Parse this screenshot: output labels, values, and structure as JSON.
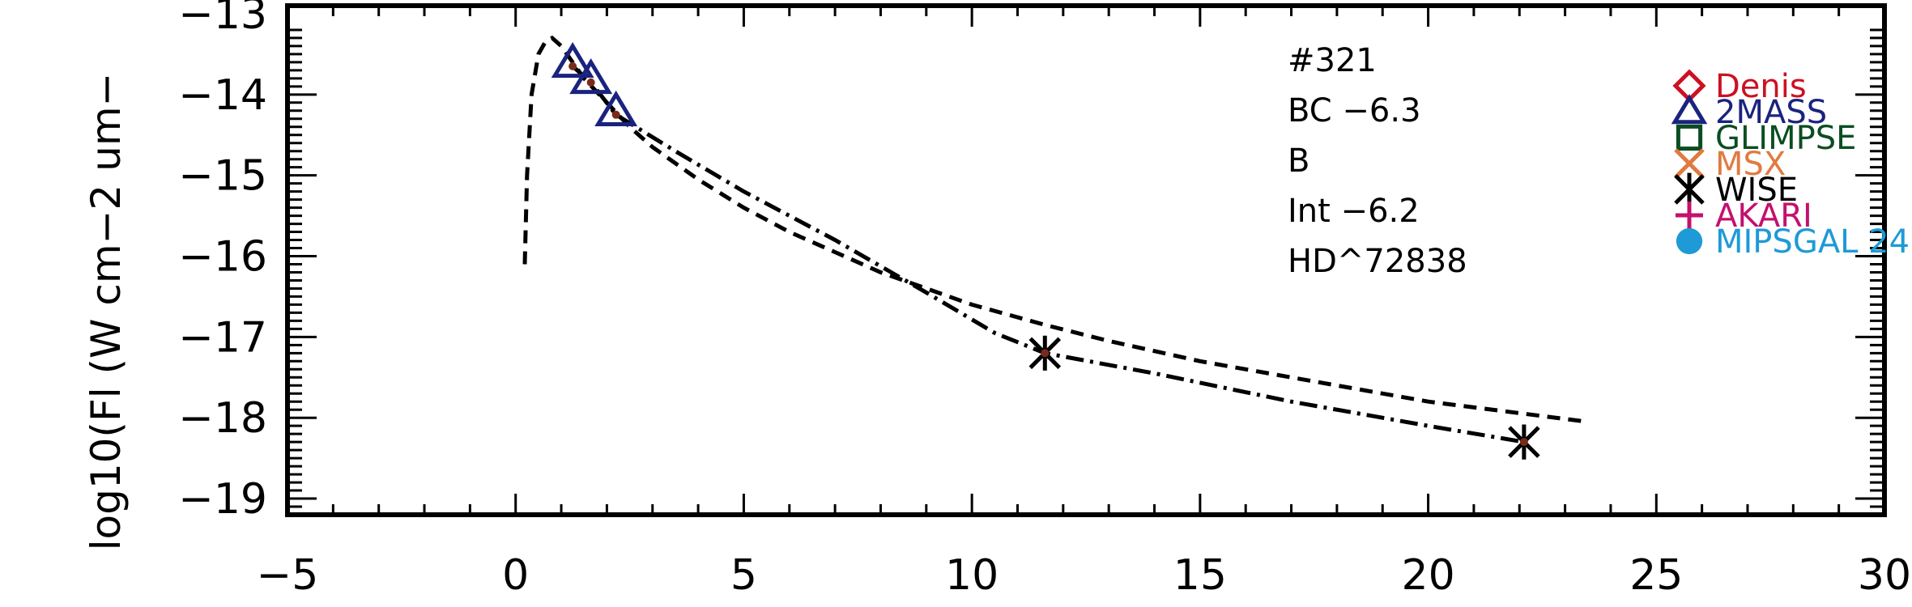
{
  "chart_data": {
    "type": "scatter",
    "title": "",
    "xlabel": "",
    "ylabel": "log10(Fl (W cm−2 um−",
    "xlim": [
      -5,
      30
    ],
    "ylim": [
      -19.2,
      -12.9
    ],
    "xticks": [
      -5,
      0,
      5,
      10,
      15,
      20,
      25,
      30
    ],
    "xtick_labels": [
      "−5",
      "0",
      "5",
      "10",
      "15",
      "20",
      "25",
      "30"
    ],
    "yticks": [
      -13,
      -14,
      -15,
      -16,
      -17,
      -18,
      -19
    ],
    "ytick_labels": [
      "−13",
      "−14",
      "−15",
      "−16",
      "−17",
      "−18",
      "−19"
    ],
    "grid": false,
    "legend_position": "top-right",
    "annotations": [
      "#321",
      "BC −6.3",
      "B",
      "Int −6.2",
      "HD^72838"
    ],
    "legend": [
      {
        "label": "Denis",
        "color": "#cc1122",
        "marker": "diamond"
      },
      {
        "label": "2MASS",
        "color": "#1a237e",
        "marker": "triangle"
      },
      {
        "label": "GLIMPSE",
        "color": "#0b4d22",
        "marker": "square"
      },
      {
        "label": "MSX",
        "color": "#e07a40",
        "marker": "x"
      },
      {
        "label": "WISE",
        "color": "#000000",
        "marker": "asterisk"
      },
      {
        "label": "AKARI",
        "color": "#c4106e",
        "marker": "plus"
      },
      {
        "label": "MIPSGAL 24",
        "color": "#1e9ad6",
        "marker": "circle"
      }
    ],
    "series": [
      {
        "marker": "triangle",
        "color": "#1a237e",
        "x": [
          1.25,
          1.65,
          2.2
        ],
        "y": [
          -13.65,
          -13.85,
          -14.25
        ]
      },
      {
        "marker": "asterisk",
        "color": "#000000",
        "x": [
          11.6,
          22.1
        ],
        "y": [
          -17.2,
          -18.3
        ]
      },
      {
        "marker": "dot",
        "color": "#7a2a1a",
        "x": [
          1.25,
          1.65,
          2.2,
          11.6,
          22.1
        ],
        "y": [
          -13.65,
          -13.85,
          -14.25,
          -17.2,
          -18.3
        ]
      }
    ],
    "curves": [
      {
        "style": "dashed",
        "x": [
          0.2,
          0.25,
          0.35,
          0.5,
          0.65,
          0.8,
          1.0,
          1.25,
          1.5,
          2.0,
          2.5,
          3.0,
          3.5,
          4.0,
          5.0,
          6.0,
          7.0,
          8.0,
          9.0,
          10.0,
          11.6,
          13.0,
          15.0,
          17.5,
          20.0,
          22.1,
          23.5
        ],
        "y": [
          -16.1,
          -15.0,
          -14.0,
          -13.5,
          -13.35,
          -13.3,
          -13.4,
          -13.6,
          -13.8,
          -14.1,
          -14.4,
          -14.65,
          -14.85,
          -15.05,
          -15.4,
          -15.7,
          -15.95,
          -16.2,
          -16.4,
          -16.6,
          -16.85,
          -17.05,
          -17.3,
          -17.55,
          -17.8,
          -17.95,
          -18.05
        ]
      },
      {
        "style": "dashdot",
        "x": [
          1.25,
          1.65,
          2.2,
          3.5,
          5.0,
          7.0,
          9.0,
          10.5,
          11.6,
          14.0,
          17.0,
          20.0,
          22.1
        ],
        "y": [
          -13.65,
          -13.85,
          -14.25,
          -14.7,
          -15.2,
          -15.8,
          -16.45,
          -16.95,
          -17.2,
          -17.45,
          -17.8,
          -18.1,
          -18.3
        ]
      }
    ]
  }
}
